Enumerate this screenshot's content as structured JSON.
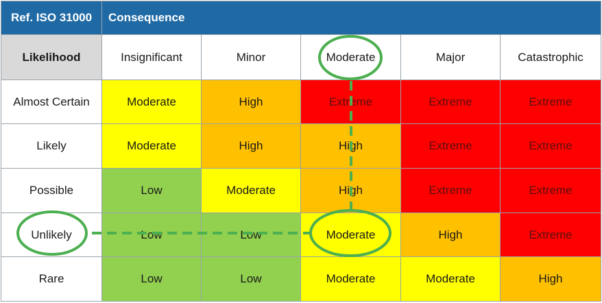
{
  "header": {
    "reference": "Ref. ISO 31000",
    "axis_title": "Consequence"
  },
  "corner_label": "Likelihood",
  "consequences": [
    "Insignificant",
    "Minor",
    "Moderate",
    "Major",
    "Catastrophic"
  ],
  "rows": [
    {
      "likelihood": "Almost Certain",
      "ratings": [
        "Moderate",
        "High",
        "Extreme",
        "Extreme",
        "Extreme"
      ]
    },
    {
      "likelihood": "Likely",
      "ratings": [
        "Moderate",
        "High",
        "High",
        "Extreme",
        "Extreme"
      ]
    },
    {
      "likelihood": "Possible",
      "ratings": [
        "Low",
        "Moderate",
        "High",
        "Extreme",
        "Extreme"
      ]
    },
    {
      "likelihood": "Unlikely",
      "ratings": [
        "Low",
        "Low",
        "Moderate",
        "High",
        "Extreme"
      ]
    },
    {
      "likelihood": "Rare",
      "ratings": [
        "Low",
        "Low",
        "Moderate",
        "Moderate",
        "High"
      ]
    }
  ],
  "level_colors": {
    "Low": "#92d050",
    "Moderate": "#ffff00",
    "High": "#ffc000",
    "Extreme": "#ff0000"
  },
  "highlight": {
    "likelihood": "Unlikely",
    "consequence": "Moderate",
    "result": "Moderate",
    "color": "#4caf50"
  }
}
